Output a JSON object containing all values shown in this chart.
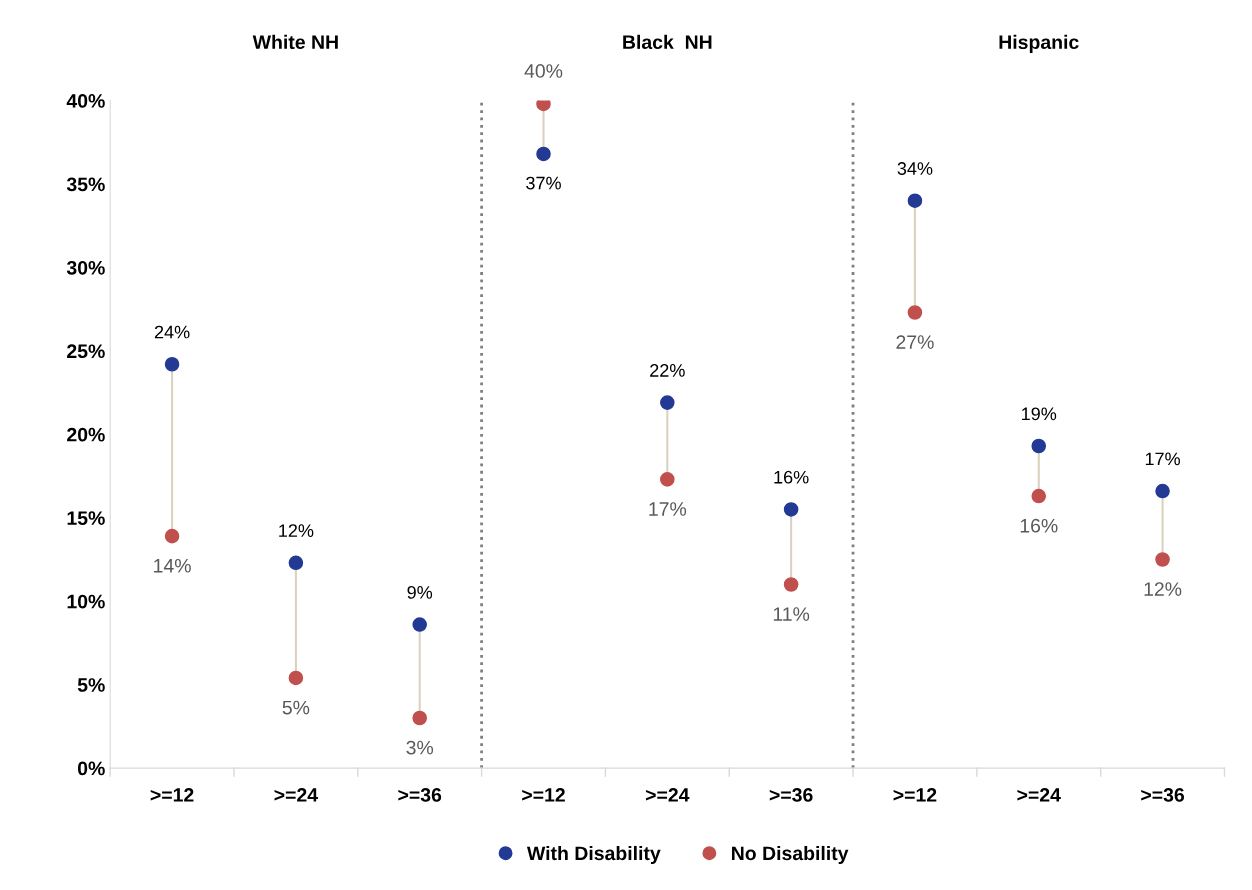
{
  "chart_data": {
    "type": "scatter",
    "categories": [
      ">=12",
      ">=24",
      ">=36",
      ">=12",
      ">=24",
      ">=36",
      ">=12",
      ">=24",
      ">=36"
    ],
    "series": [
      {
        "name": "With Disability",
        "color": "#233a95",
        "values": [
          24.2,
          12.3,
          8.6,
          36.8,
          21.9,
          15.5,
          34.0,
          19.3,
          16.6
        ],
        "value_labels": [
          "24%",
          "12%",
          "9%",
          "37%",
          "22%",
          "16%",
          "34%",
          "19%",
          "17%"
        ]
      },
      {
        "name": "No Disability",
        "color": "#c0504d",
        "values": [
          13.9,
          5.4,
          3.0,
          39.8,
          17.3,
          11.0,
          27.3,
          16.3,
          12.5
        ],
        "value_labels": [
          "14%",
          "5%",
          "3%",
          "40%",
          "17%",
          "11%",
          "27%",
          "16%",
          "12%"
        ]
      }
    ],
    "annotations": [
      "White NH",
      "Black  NH",
      "Hispanic"
    ],
    "ylim": [
      0,
      40
    ],
    "yticks": [
      {
        "value": 0,
        "label": "0%"
      },
      {
        "value": 5,
        "label": "5%"
      },
      {
        "value": 10,
        "label": "10%"
      },
      {
        "value": 15,
        "label": "15%"
      },
      {
        "value": 20,
        "label": "20%"
      },
      {
        "value": 25,
        "label": "25%"
      },
      {
        "value": 30,
        "label": "30%"
      },
      {
        "value": 35,
        "label": "35%"
      },
      {
        "value": 40,
        "label": "40%"
      }
    ],
    "marker": "circle",
    "grid": false,
    "legend": "bottom"
  }
}
